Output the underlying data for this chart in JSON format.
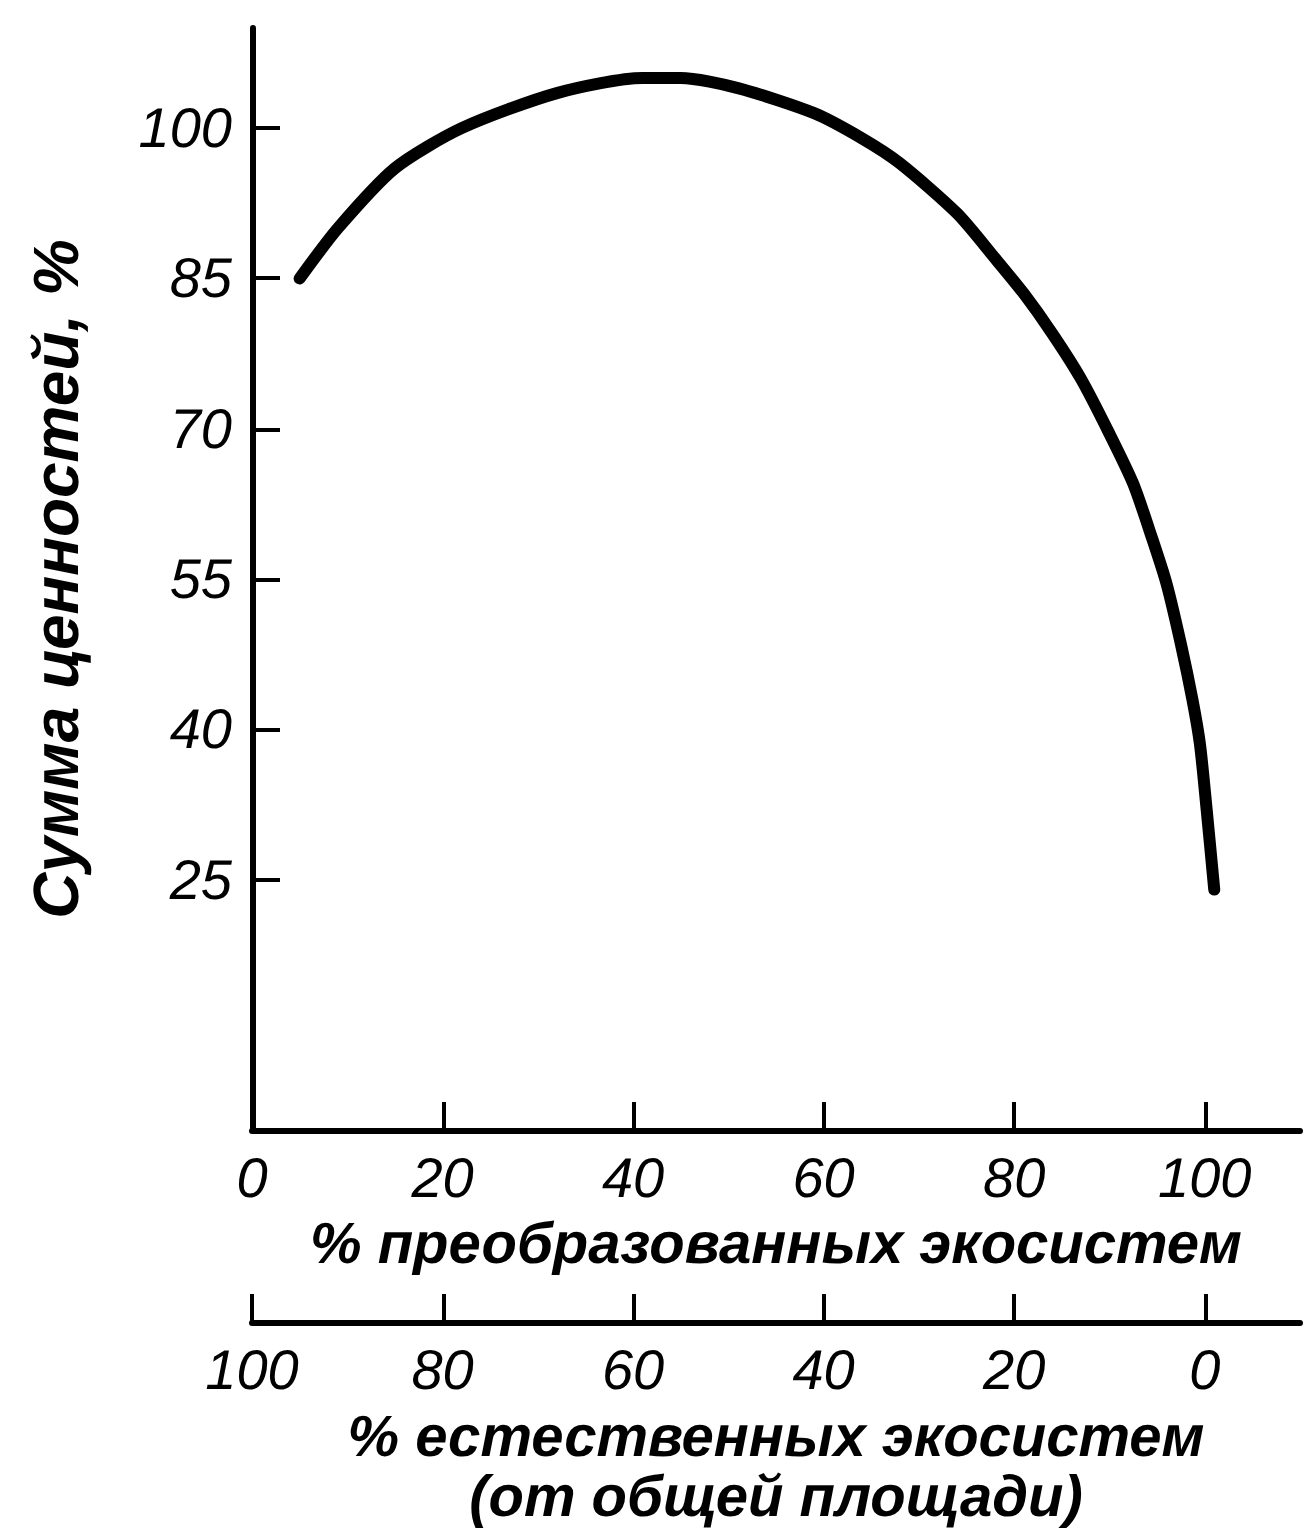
{
  "chart_data": {
    "type": "line",
    "xlabel": "% преобразованных экосистем",
    "ylabel": "Сумма ценностей, %",
    "x2label": "% естественных экосистем\n(от общей площади)",
    "x": [
      5,
      9,
      15,
      22,
      32,
      41,
      45,
      51,
      59,
      64,
      68,
      74,
      78,
      81,
      84,
      87,
      90,
      92.5,
      94.5,
      96,
      97.5,
      98.7,
      99.5,
      100.2,
      101
    ],
    "series": [
      {
        "color": "#000000",
        "values": [
          85,
          90,
          96,
          100,
          103.5,
          105,
          105,
          104,
          101.5,
          99,
          96.5,
          91.5,
          87,
          83.5,
          79.5,
          75,
          69.5,
          64.5,
          59,
          54.5,
          48.5,
          43,
          38.5,
          32,
          24
        ]
      }
    ],
    "xlim": [
      0,
      110
    ],
    "xticks": [
      0,
      20,
      40,
      60,
      80,
      100
    ],
    "x2lim": [
      100,
      -10
    ],
    "x2ticks": [
      100,
      80,
      60,
      40,
      20,
      0
    ],
    "ylim": [
      0,
      110
    ],
    "yticks": [
      25,
      40,
      55,
      70,
      85,
      100
    ],
    "grid": false,
    "marker": "none",
    "line_style": "solid"
  }
}
